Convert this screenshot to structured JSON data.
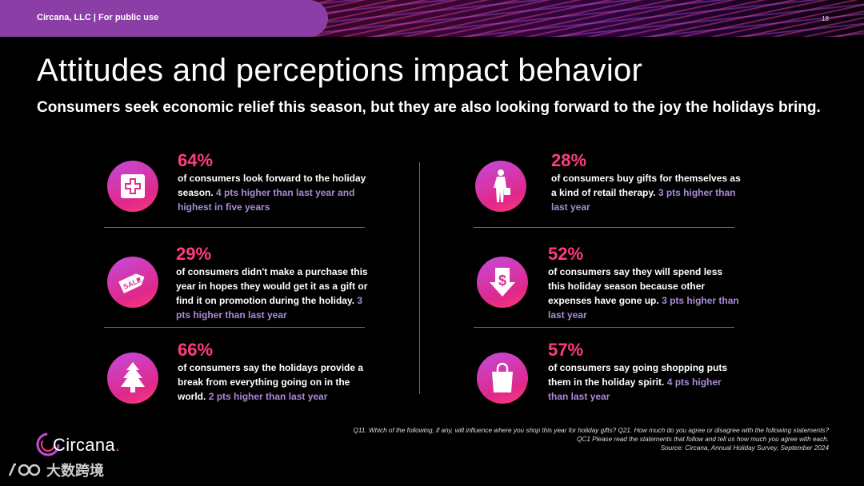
{
  "header": {
    "label": "Circana, LLC |  For public use",
    "page_number": "18"
  },
  "title": "Attitudes and perceptions impact behavior",
  "subtitle": "Consumers seek economic relief this season, but they are also looking forward to the joy the holidays bring.",
  "stats": [
    {
      "icon": "first-aid-icon",
      "percent": "64%",
      "text": "of consumers look forward to the holiday season.",
      "highlight": "4 pts higher than last year and highest in five years"
    },
    {
      "icon": "sale-tag-icon",
      "percent": "29%",
      "text": "of consumers didn't make a purchase this year in hopes they would get it as a gift or find it on promotion during the holiday.",
      "highlight": "3 pts higher than last year"
    },
    {
      "icon": "christmas-tree-icon",
      "percent": "66%",
      "text": "of consumers say the holidays provide a break from everything going on in the world.",
      "highlight": "2 pts higher than last year"
    },
    {
      "icon": "shopper-person-icon",
      "percent": "28%",
      "text": "of consumers buy gifts for themselves as a kind of retail therapy.",
      "highlight": "3 pts higher than last year"
    },
    {
      "icon": "dollar-down-arrow-icon",
      "percent": "52%",
      "text": "of consumers say they will spend less this holiday season because other expenses have gone up.",
      "highlight": "3 pts higher than last year"
    },
    {
      "icon": "shopping-bag-icon",
      "percent": "57%",
      "text": "of consumers say going shopping puts them in the holiday spirit.",
      "highlight": "4 pts higher than last year"
    }
  ],
  "footnote": {
    "line1": "Q11. Which of the following, if any, will influence where you shop this year for holiday gifts? Q21. How much do you agree or disagree with the following statements?",
    "line2": "QC1 Please read the statements that follow and tell us how much you agree with each.",
    "line3": "Source: Circana, Annual Holiday Survey, September 2024"
  },
  "logo": {
    "text": "Circana",
    "dot": "."
  },
  "watermark": {
    "text": "大数跨境"
  },
  "colors": {
    "accent": "#ff3d7a",
    "highlight": "#a98bd9",
    "band": "#8b3fa6"
  }
}
